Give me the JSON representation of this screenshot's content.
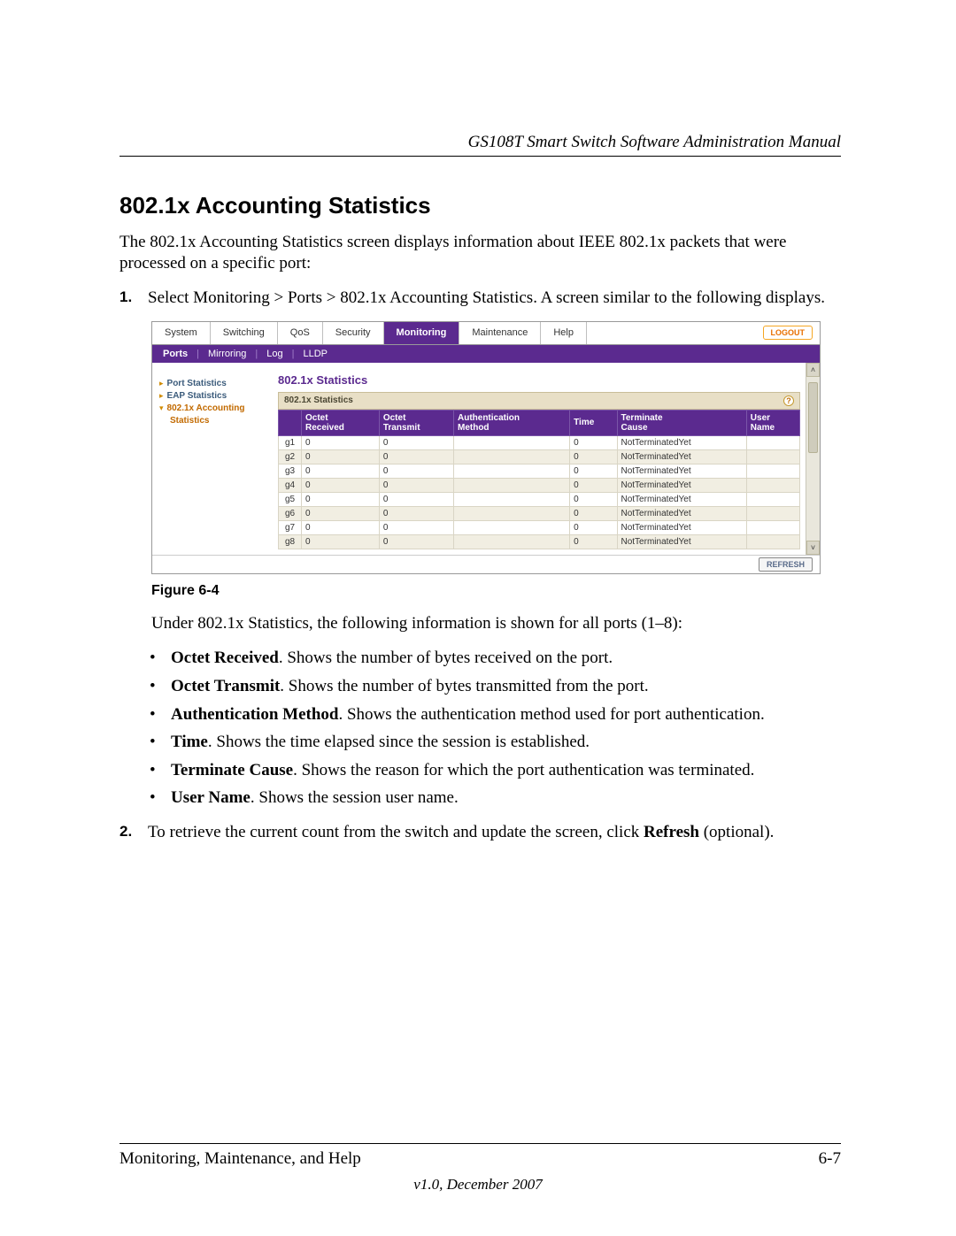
{
  "header": {
    "title": "GS108T Smart Switch Software Administration Manual"
  },
  "section": {
    "heading": "802.1x Accounting Statistics"
  },
  "intro": "The 802.1x Accounting Statistics screen displays information about IEEE 802.1x packets that were processed on a specific port:",
  "step1": {
    "num": "1.",
    "text": "Select Monitoring > Ports > 802.1x Accounting Statistics. A screen similar to the following displays."
  },
  "figure": {
    "label": "Figure 6-4"
  },
  "under_text": "Under 802.1x Statistics, the following information is shown for all ports (1–8):",
  "bullets": [
    {
      "term": "Octet Received",
      "desc": ". Shows the number of bytes received on the port."
    },
    {
      "term": "Octet Transmit",
      "desc": ". Shows the number of bytes transmitted from the port."
    },
    {
      "term": "Authentication Method",
      "desc": ". Shows the authentication method used for port authentication."
    },
    {
      "term": "Time",
      "desc": ". Shows the time elapsed since the session is established."
    },
    {
      "term": "Terminate Cause",
      "desc": ". Shows the reason for which the port authentication was terminated."
    },
    {
      "term": "User Name",
      "desc": ". Shows the session user name."
    }
  ],
  "step2": {
    "num": "2.",
    "pre": "To retrieve the current count from the switch and update the screen, click ",
    "bold": "Refresh",
    "post": " (optional)."
  },
  "footer": {
    "left": "Monitoring, Maintenance, and Help",
    "right": "6-7",
    "version": "v1.0, December 2007"
  },
  "screenshot": {
    "tabs": [
      "System",
      "Switching",
      "QoS",
      "Security",
      "Monitoring",
      "Maintenance",
      "Help"
    ],
    "active_tab_index": 4,
    "logout": "LOGOUT",
    "subtabs": [
      "Ports",
      "Mirroring",
      "Log",
      "LLDP"
    ],
    "active_subtab_index": 0,
    "sidebar": {
      "items": [
        {
          "label": "Port Statistics",
          "selected": false
        },
        {
          "label": "EAP Statistics",
          "selected": false
        },
        {
          "label": "802.1x Accounting",
          "selected": true,
          "sub": "Statistics"
        }
      ]
    },
    "main_title": "802.1x Statistics",
    "panel_title": "802.1x Statistics",
    "columns": [
      "",
      "Octet\nReceived",
      "Octet\nTransmit",
      "Authentication\nMethod",
      "Time",
      "Terminate\nCause",
      "User\nName"
    ],
    "rows": [
      {
        "port": "g1",
        "or": "0",
        "ot": "0",
        "am": "",
        "time": "0",
        "tc": "NotTerminatedYet",
        "un": ""
      },
      {
        "port": "g2",
        "or": "0",
        "ot": "0",
        "am": "",
        "time": "0",
        "tc": "NotTerminatedYet",
        "un": ""
      },
      {
        "port": "g3",
        "or": "0",
        "ot": "0",
        "am": "",
        "time": "0",
        "tc": "NotTerminatedYet",
        "un": ""
      },
      {
        "port": "g4",
        "or": "0",
        "ot": "0",
        "am": "",
        "time": "0",
        "tc": "NotTerminatedYet",
        "un": ""
      },
      {
        "port": "g5",
        "or": "0",
        "ot": "0",
        "am": "",
        "time": "0",
        "tc": "NotTerminatedYet",
        "un": ""
      },
      {
        "port": "g6",
        "or": "0",
        "ot": "0",
        "am": "",
        "time": "0",
        "tc": "NotTerminatedYet",
        "un": ""
      },
      {
        "port": "g7",
        "or": "0",
        "ot": "0",
        "am": "",
        "time": "0",
        "tc": "NotTerminatedYet",
        "un": ""
      },
      {
        "port": "g8",
        "or": "0",
        "ot": "0",
        "am": "",
        "time": "0",
        "tc": "NotTerminatedYet",
        "un": ""
      }
    ],
    "refresh": "REFRESH",
    "colors": {
      "purple": "#5b2a8f",
      "panel_head": "#e8dfc6",
      "alt_row": "#f1eee2",
      "orange": "#e86f00"
    }
  }
}
